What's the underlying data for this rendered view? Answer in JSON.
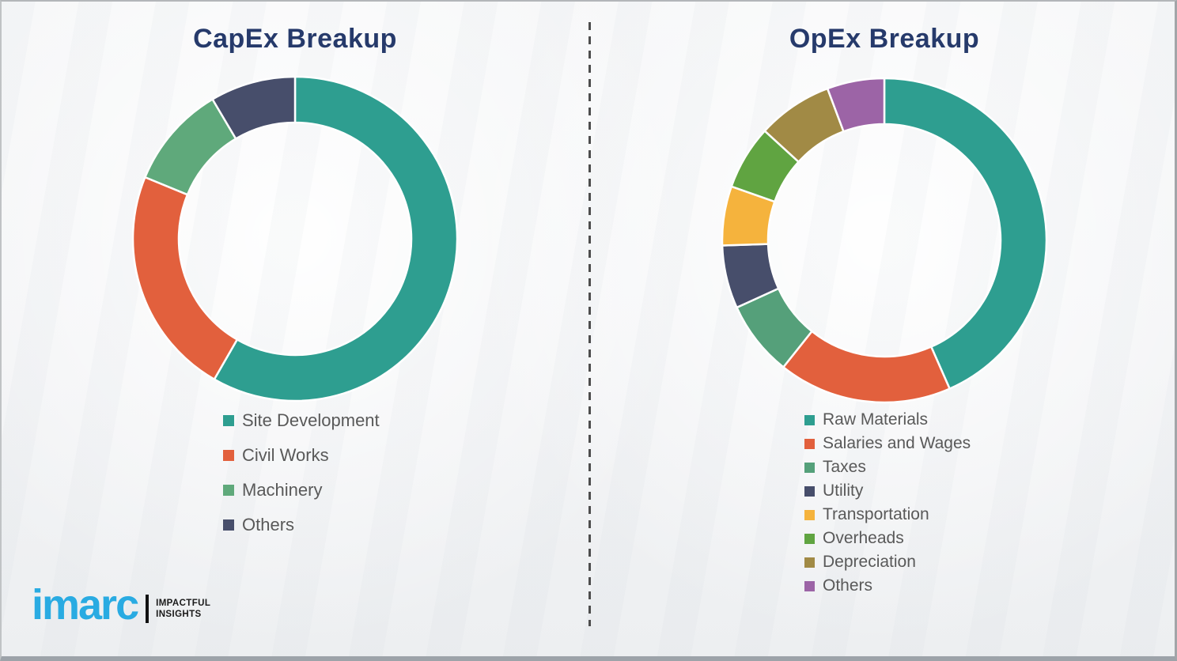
{
  "theme": {
    "title_color": "#263a6b",
    "legend_text": "#595959",
    "brand_blue": "#29abe2",
    "divider_color": "#4d4d4d",
    "page_bg": "#f3f4f6"
  },
  "chart_data": [
    {
      "type": "pie",
      "subtype": "donut",
      "title": "CapEx Breakup",
      "start_angle_deg": 0,
      "direction": "clockwise",
      "legend_position": "below-left",
      "gridlines": false,
      "segments": [
        {
          "label": "Site Development",
          "value": 58.3,
          "color": "#2e9e90"
        },
        {
          "label": "Civil Works",
          "value": 22.9,
          "color": "#e2603d"
        },
        {
          "label": "Machinery",
          "value": 10.3,
          "color": "#5fa97b"
        },
        {
          "label": "Others",
          "value": 8.5,
          "color": "#474e6b"
        }
      ]
    },
    {
      "type": "pie",
      "subtype": "donut",
      "title": "OpEx Breakup",
      "start_angle_deg": 0,
      "direction": "clockwise",
      "legend_position": "below-left",
      "gridlines": false,
      "segments": [
        {
          "label": "Raw Materials",
          "value": 43.4,
          "color": "#2e9e90"
        },
        {
          "label": "Salaries and Wages",
          "value": 17.3,
          "color": "#e2603d"
        },
        {
          "label": "Taxes",
          "value": 7.5,
          "color": "#55a07a"
        },
        {
          "label": "Utility",
          "value": 6.3,
          "color": "#474e6b"
        },
        {
          "label": "Transportation",
          "value": 5.9,
          "color": "#f5b33d"
        },
        {
          "label": "Overheads",
          "value": 6.4,
          "color": "#60a441"
        },
        {
          "label": "Depreciation",
          "value": 7.5,
          "color": "#a18a45"
        },
        {
          "label": "Others",
          "value": 5.7,
          "color": "#9c64a6"
        }
      ]
    }
  ],
  "logo": {
    "brand": "imarc",
    "tagline_line1": "IMPACTFUL",
    "tagline_line2": "INSIGHTS"
  }
}
